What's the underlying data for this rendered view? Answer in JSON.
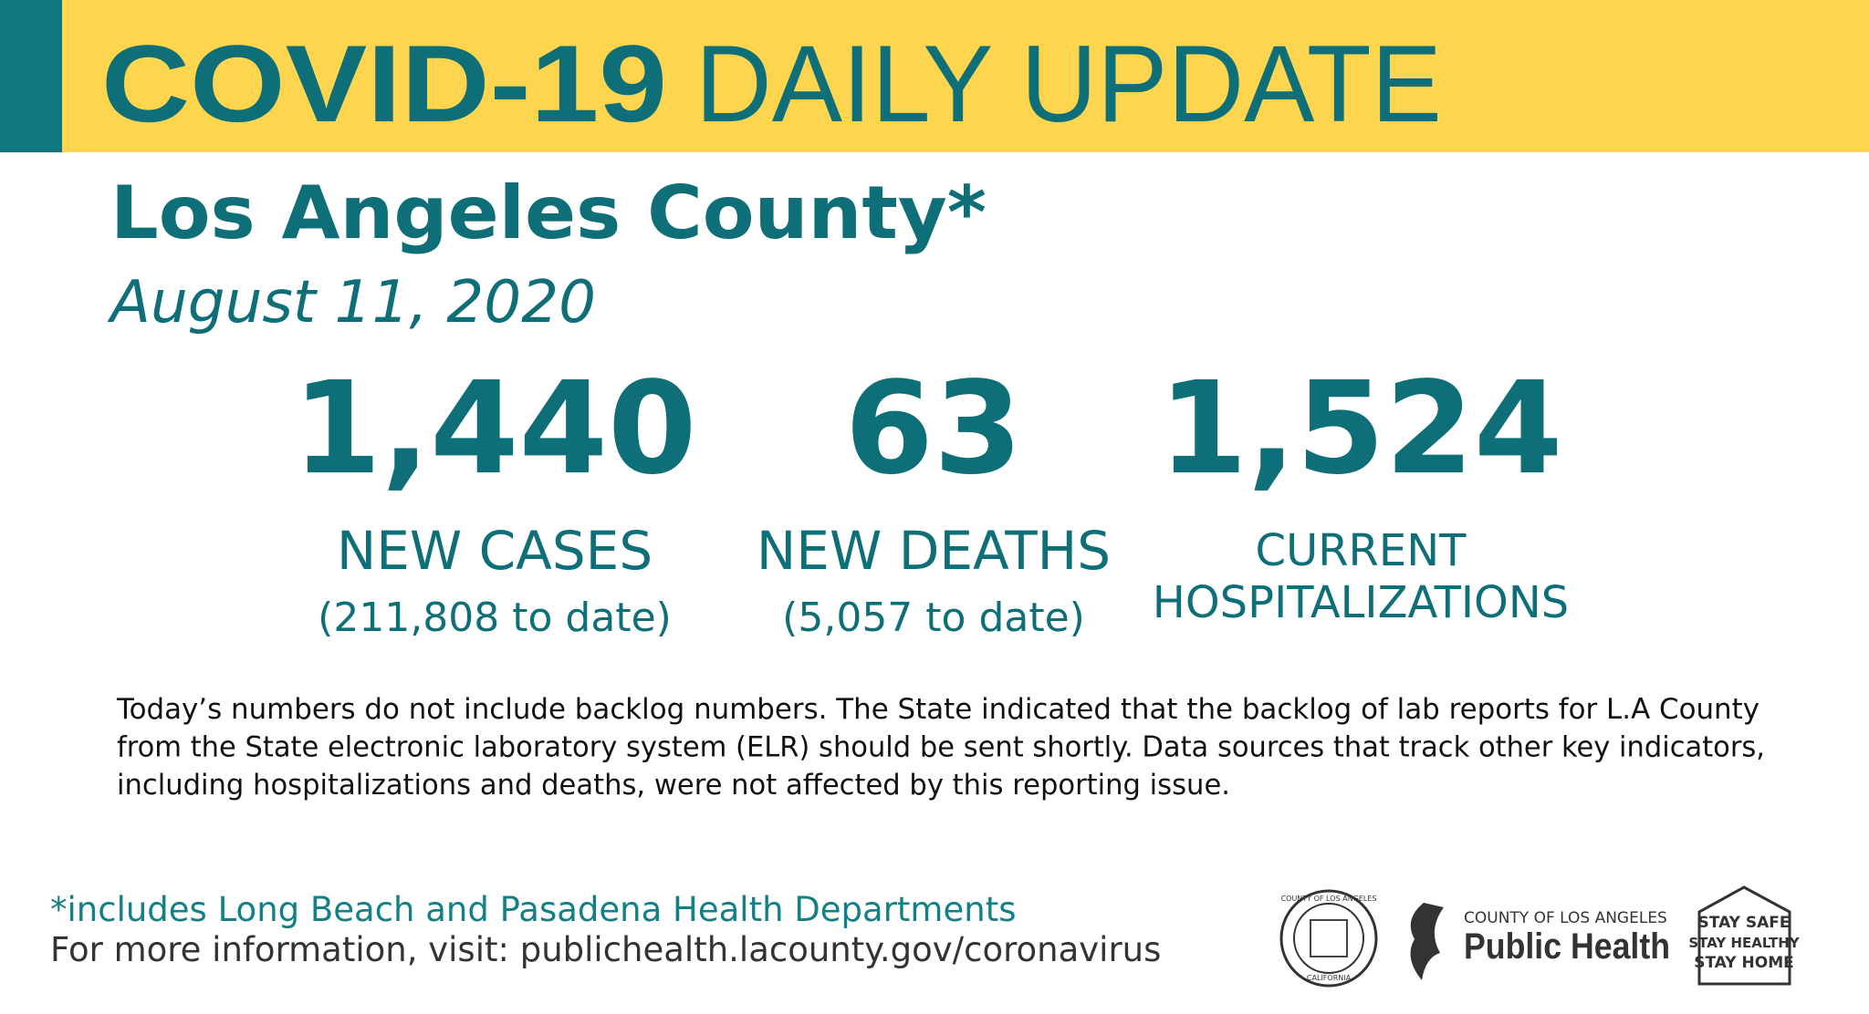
{
  "header": {
    "title_bold": "COVID-19",
    "title_rest": "DAILY UPDATE"
  },
  "subtitle": "Los Angeles County*",
  "date": "August 11, 2020",
  "stats": [
    {
      "value": "1,440",
      "label": [
        "NEW CASES"
      ],
      "note": "(211,808 to date)"
    },
    {
      "value": "63",
      "label": [
        "NEW DEATHS"
      ],
      "note": "(5,057 to date)"
    },
    {
      "value": "1,524",
      "label": [
        "CURRENT",
        "HOSPITALIZATIONS"
      ]
    }
  ],
  "notice": [
    "Today’s numbers do not include backlog numbers. The State indicated that the backlog of lab reports for L.A County",
    "from the State electronic laboratory system (ELR) should be sent shortly. Data sources that track other key indicators,",
    "including hospitalizations and deaths, were not affected by this reporting issue."
  ],
  "footer": {
    "footnote": "*includes Long Beach and Pasadena Health Departments",
    "more_info": "For more information, visit: publichealth.lacounty.gov/coronavirus"
  },
  "logos": {
    "seal_top": "COUNTY OF LOS ANGELES",
    "seal_bottom": "CALIFORNIA",
    "ph_small": "COUNTY OF LOS ANGELES",
    "ph_big": "Public Health",
    "stay": [
      "STAY SAFE",
      "STAY HEALTHY",
      "STAY HOME"
    ]
  }
}
